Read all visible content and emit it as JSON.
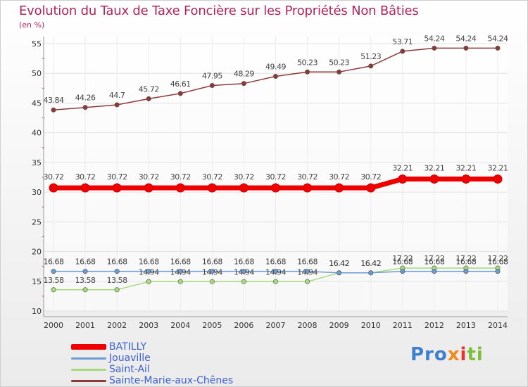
{
  "header": {
    "title": "Evolution du Taux de Taxe Foncière sur les Propriétés Non Bâties",
    "unit": "(en %)"
  },
  "logo": {
    "text": "Proxiti",
    "colors": [
      "#3f7fd0",
      "#f08a1c",
      "#e4342c",
      "#7bbf3a"
    ]
  },
  "chart_data": {
    "type": "line",
    "title": "Evolution du Taux de Taxe Foncière sur les Propriétés Non Bâties",
    "ylabel": "(en %)",
    "xlabel": "",
    "x": [
      "2000",
      "2001",
      "2002",
      "2003",
      "2004",
      "2005",
      "2006",
      "2007",
      "2008",
      "2009",
      "2010",
      "2011",
      "2012",
      "2013",
      "2014"
    ],
    "ylim": [
      10,
      55
    ],
    "yticks": [
      10,
      15,
      20,
      25,
      30,
      35,
      40,
      45,
      50,
      55
    ],
    "grid": true,
    "legend_position": "bottom-left",
    "series": [
      {
        "name": "BATILLY",
        "color": "#ee0000",
        "values": [
          30.72,
          30.72,
          30.72,
          30.72,
          30.72,
          30.72,
          30.72,
          30.72,
          30.72,
          30.72,
          30.72,
          32.21,
          32.21,
          32.21,
          32.21
        ],
        "labels": [
          "30.72",
          "30.72",
          "30.72",
          "30.72",
          "30.72",
          "30.72",
          "30.72",
          "30.72",
          "30.72",
          "30.72",
          "30.72",
          "32.21",
          "32.21",
          "32.21",
          "32.21"
        ]
      },
      {
        "name": "Jouaville",
        "color": "#6b9bd1",
        "values": [
          16.68,
          16.68,
          16.68,
          16.68,
          16.68,
          16.68,
          16.68,
          16.68,
          16.68,
          16.42,
          16.42,
          16.68,
          16.68,
          16.68,
          16.68
        ],
        "labels": [
          "16.68",
          "16.68",
          "16.68",
          "16.68",
          "16.68",
          "16.68",
          "16.68",
          "16.68",
          "16.68",
          "16.42",
          "16.42",
          "16.68",
          "16.68",
          "16.68",
          "16.68"
        ]
      },
      {
        "name": "Saint-Ail",
        "color": "#a6da7a",
        "values": [
          13.58,
          13.58,
          13.58,
          14.94,
          14.94,
          14.94,
          14.94,
          14.94,
          14.94,
          16.42,
          16.42,
          17.22,
          17.22,
          17.22,
          17.22
        ],
        "labels": [
          "13.58",
          "13.58",
          "13.58",
          "14.94",
          "14.94",
          "14.94",
          "14.94",
          "14.94",
          "14.94",
          "16.42",
          "16.42",
          "17.22",
          "17.22",
          "17.22",
          "17.22"
        ]
      },
      {
        "name": "Sainte-Marie-aux-Chênes",
        "color": "#8b3a3a",
        "values": [
          43.84,
          44.26,
          44.7,
          45.72,
          46.61,
          47.95,
          48.29,
          49.49,
          50.23,
          50.23,
          51.23,
          53.71,
          54.24,
          54.24,
          54.24
        ],
        "labels": [
          "43.84",
          "44.26",
          "44.7",
          "45.72",
          "46.61",
          "47.95",
          "48.29",
          "49.49",
          "50.23",
          "50.23",
          "51.23",
          "53.71",
          "54.24",
          "54.24",
          "54.24"
        ]
      }
    ]
  }
}
